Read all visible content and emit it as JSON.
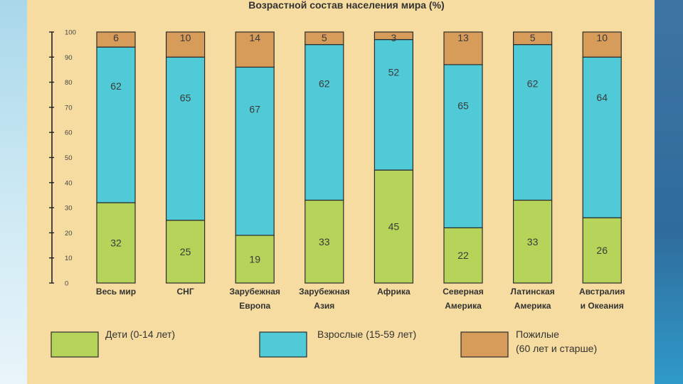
{
  "chart_data": {
    "type": "bar",
    "stacked": true,
    "title": "Возрастной состав населения мира (%)",
    "ylim": [
      0,
      100
    ],
    "yticks": [
      0,
      10,
      20,
      30,
      40,
      50,
      60,
      70,
      80,
      90,
      100
    ],
    "categories": [
      [
        "Весь мир"
      ],
      [
        "СНГ"
      ],
      [
        "Зарубежная",
        "Европа"
      ],
      [
        "Зарубежная",
        "Азия"
      ],
      [
        "Африка"
      ],
      [
        "Северная",
        "Америка"
      ],
      [
        "Латинская",
        "Америка"
      ],
      [
        "Австралия",
        "и Океания"
      ]
    ],
    "series": [
      {
        "name": "Дети (0-14 лет)",
        "color": "#b6d45a",
        "values": [
          32,
          25,
          19,
          33,
          45,
          22,
          33,
          26
        ]
      },
      {
        "name": "Взрослые (15-59 лет)",
        "color": "#4fcad6",
        "values": [
          62,
          65,
          67,
          62,
          52,
          65,
          62,
          64
        ]
      },
      {
        "name": "Пожилые (60 лет и старше)",
        "color": "#d79b5a",
        "values": [
          6,
          10,
          14,
          5,
          3,
          13,
          5,
          10
        ]
      }
    ],
    "legend": {
      "position": "bottom",
      "entries": [
        {
          "lines": [
            "Дети (0-14 лет)"
          ],
          "color": "#b6d45a"
        },
        {
          "lines": [
            "Взрослые (15-59 лет)"
          ],
          "color": "#4fcad6"
        },
        {
          "lines": [
            "Пожилые",
            "(60 лет и старше)"
          ],
          "color": "#d79b5a"
        }
      ]
    }
  }
}
